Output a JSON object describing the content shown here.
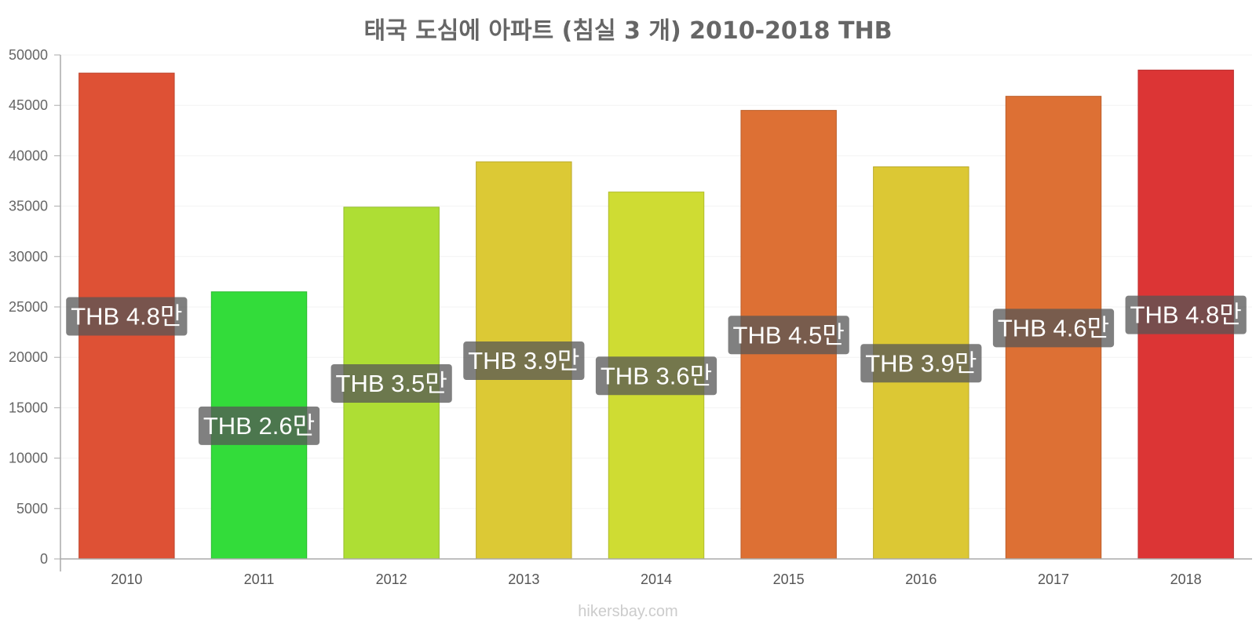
{
  "chart_data": {
    "type": "bar",
    "title": "태국 도심에 아파트 (침실 3 개) 2010-2018 THB",
    "categories": [
      "2010",
      "2011",
      "2012",
      "2013",
      "2014",
      "2015",
      "2016",
      "2017",
      "2018"
    ],
    "values": [
      48200,
      26500,
      34900,
      39400,
      36400,
      44500,
      38900,
      45900,
      48500
    ],
    "data_labels": [
      "THB 4.8만",
      "THB 2.6만",
      "THB 3.5만",
      "THB 3.9만",
      "THB 3.6만",
      "THB 4.5만",
      "THB 3.9만",
      "THB 4.6만",
      "THB 4.8만"
    ],
    "bar_colors": [
      "#de5135",
      "#33dc3a",
      "#aede34",
      "#dcc935",
      "#cfdc33",
      "#dd7034",
      "#dcc834",
      "#dd7034",
      "#dc3535"
    ],
    "ylim": [
      0,
      50000
    ],
    "yticks": [
      0,
      5000,
      10000,
      15000,
      20000,
      25000,
      30000,
      35000,
      40000,
      45000,
      50000
    ],
    "xlabel": "",
    "ylabel": "",
    "grid": true,
    "legend": "none"
  },
  "watermark": "hikersbay.com"
}
